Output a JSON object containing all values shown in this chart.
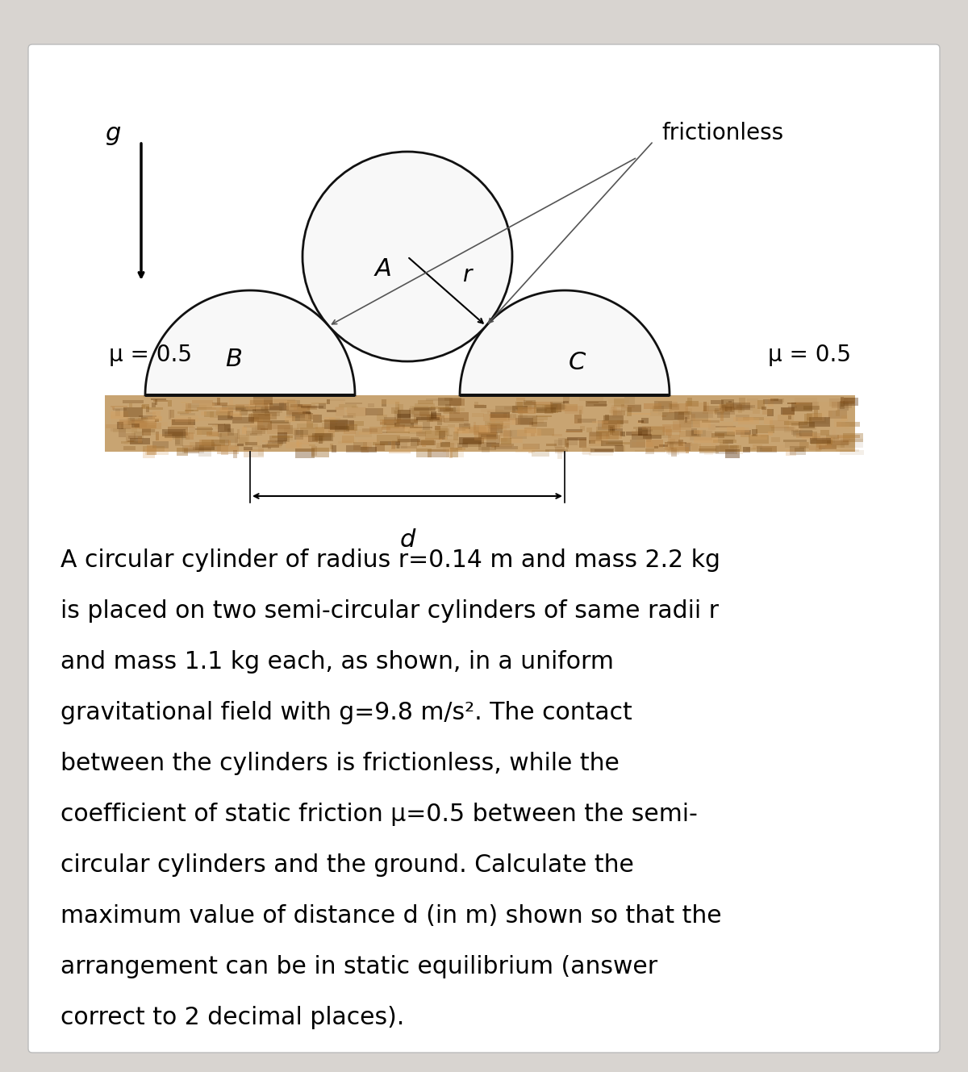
{
  "bg_outer": "#d8d4d0",
  "bg_card": "#ffffff",
  "ground_base_color": "#c8a472",
  "circle_lw": 2.0,
  "circle_edge": "#111111",
  "circle_face": "#f8f8f8",
  "label_A": "A",
  "label_B": "B",
  "label_C": "C",
  "label_r": "r",
  "label_g": "g",
  "label_frictionless": "frictionless",
  "label_mu_left": "μ = 0.5",
  "label_mu_right": "μ = 0.5",
  "label_d": "d",
  "text_line1": "A circular cylinder of radius r=0.14 m and mass 2.2 kg",
  "text_line2": "is placed on two semi-circular cylinders of same radii r",
  "text_line3": "and mass 1.1 kg each, as shown, in a uniform",
  "text_line4": "gravitational field with g=9.8 m/s². The contact",
  "text_line5": "between the cylinders is frictionless, while the",
  "text_line6": "coefficient of static friction μ=0.5 between the semi-",
  "text_line7": "circular cylinders and the ground. Calculate the",
  "text_line8": "maximum value of distance d (in m) shown so that the",
  "text_line9": "arrangement can be in static equilibrium (answer",
  "text_line10": "correct to 2 decimal places)."
}
